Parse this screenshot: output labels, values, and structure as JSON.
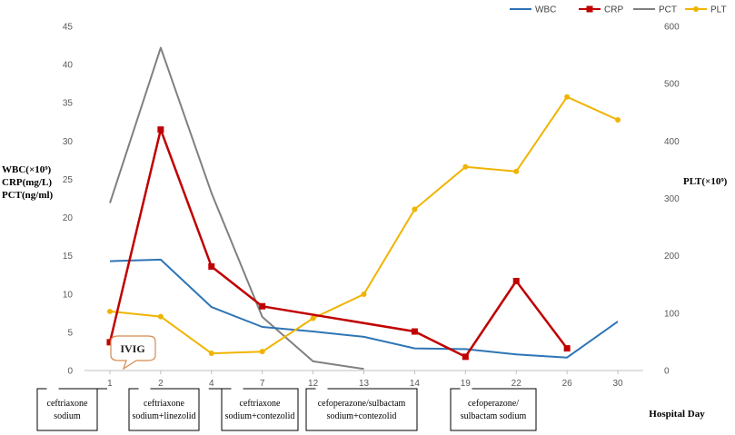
{
  "chart_data": {
    "type": "line",
    "categories": [
      "1",
      "2",
      "4",
      "7",
      "12",
      "13",
      "14",
      "19",
      "22",
      "26",
      "30"
    ],
    "series": [
      {
        "name": "WBC",
        "axis": "left",
        "color": "#2E75B6",
        "marker": "none",
        "values": [
          14.3,
          14.5,
          8.3,
          5.7,
          5.1,
          4.4,
          2.9,
          2.8,
          2.1,
          1.7,
          6.4
        ]
      },
      {
        "name": "CRP",
        "axis": "left",
        "color": "#C00000",
        "marker": "square",
        "values": [
          3.7,
          31.5,
          13.6,
          8.4,
          null,
          null,
          5.1,
          1.8,
          11.7,
          2.9,
          null
        ]
      },
      {
        "name": "PCT",
        "axis": "left",
        "color": "#808080",
        "marker": "none",
        "values": [
          21.9,
          42.2,
          23.2,
          7.0,
          1.2,
          0.2,
          null,
          null,
          null,
          null,
          null
        ]
      },
      {
        "name": "PLT",
        "axis": "right",
        "color": "#F0B400",
        "marker": "circle",
        "values": [
          103,
          94,
          30,
          33,
          91,
          133,
          281,
          355,
          347,
          477,
          437
        ]
      }
    ],
    "left_axis": {
      "label_lines": [
        "WBC(×10⁹)",
        "CRP(mg/L)",
        "PCT(ng/ml)"
      ],
      "ylim": [
        0,
        45
      ],
      "ticks": [
        "0",
        "5",
        "10",
        "15",
        "20",
        "25",
        "30",
        "35",
        "40",
        "45"
      ]
    },
    "right_axis": {
      "label": "PLT(×10⁹)",
      "ylim": [
        0,
        600
      ],
      "ticks": [
        "0",
        "100",
        "200",
        "300",
        "400",
        "500",
        "600"
      ]
    },
    "xlabel": "Hospital Day",
    "legend_position": "top-right",
    "annotations": {
      "ivig": "IVIG",
      "treatments": [
        {
          "day": "1",
          "lines": [
            "ceftriaxone",
            "sodium"
          ]
        },
        {
          "day": "2",
          "lines": [
            "ceftriaxone",
            "sodium+linezolid"
          ]
        },
        {
          "day": "4",
          "lines": [
            "ceftriaxone",
            "sodium+contezolid"
          ]
        },
        {
          "day": "12",
          "lines": [
            "cefoperazone/sulbactam",
            "sodium+contezolid"
          ]
        },
        {
          "day": "19",
          "lines": [
            "cefoperazone/",
            "sulbactam sodium"
          ]
        }
      ]
    },
    "grid": false
  }
}
